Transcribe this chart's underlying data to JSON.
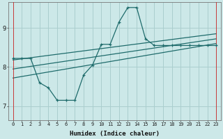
{
  "xlabel": "Humidex (Indice chaleur)",
  "bg_color": "#cce8e8",
  "line_color": "#1e6b6b",
  "grid_color": "#aacece",
  "x_ticks": [
    0,
    1,
    2,
    3,
    4,
    5,
    6,
    7,
    8,
    9,
    10,
    11,
    12,
    13,
    14,
    15,
    16,
    17,
    18,
    19,
    20,
    21,
    22,
    23
  ],
  "y_ticks": [
    7,
    8,
    9
  ],
  "ylim": [
    6.65,
    9.65
  ],
  "xlim": [
    -0.5,
    23.5
  ],
  "series1_x": [
    0,
    1,
    2,
    3,
    4,
    5,
    6,
    7,
    8,
    9,
    10,
    11,
    12,
    13,
    14,
    15,
    16,
    17,
    18,
    19,
    20,
    21,
    22,
    23
  ],
  "series1_y": [
    8.22,
    8.22,
    8.22,
    7.6,
    7.47,
    7.15,
    7.15,
    7.15,
    7.8,
    8.05,
    8.58,
    8.58,
    9.15,
    9.52,
    9.52,
    8.72,
    8.55,
    8.55,
    8.55,
    8.55,
    8.55,
    8.55,
    8.55,
    8.55
  ],
  "series2_x": [
    0,
    23
  ],
  "series2_y": [
    7.72,
    8.6
  ],
  "series3_x": [
    0,
    23
  ],
  "series3_y": [
    7.95,
    8.72
  ],
  "series4_x": [
    0,
    23
  ],
  "series4_y": [
    8.18,
    8.85
  ],
  "red_vline_x": [
    0,
    23
  ]
}
